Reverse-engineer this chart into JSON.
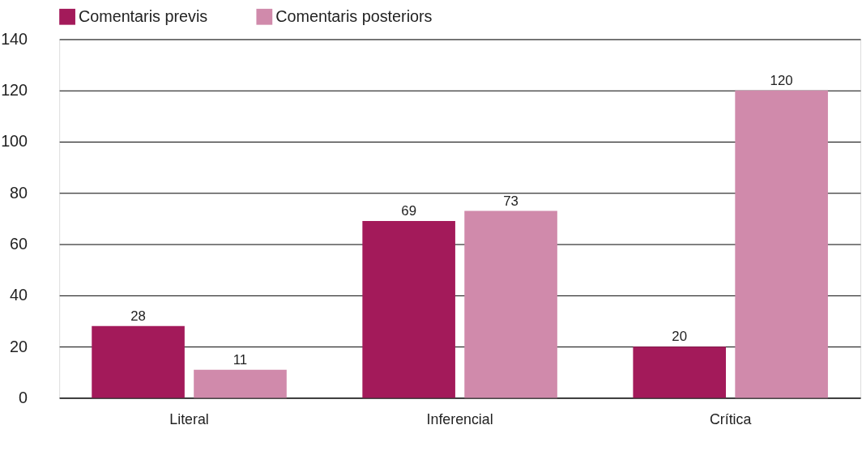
{
  "chart_data": {
    "type": "bar",
    "categories": [
      "Literal",
      "Inferencial",
      "Crítica"
    ],
    "series": [
      {
        "name": "Comentaris previs",
        "color": "#a31a5a",
        "values": [
          28,
          69,
          20
        ]
      },
      {
        "name": "Comentaris posteriors",
        "color": "#d08aab",
        "values": [
          11,
          73,
          120
        ]
      }
    ],
    "ylim": [
      0,
      140
    ],
    "yticks": [
      0,
      20,
      40,
      60,
      80,
      100,
      120,
      140
    ],
    "grid": "y",
    "legend": "top",
    "data_labels": true
  }
}
